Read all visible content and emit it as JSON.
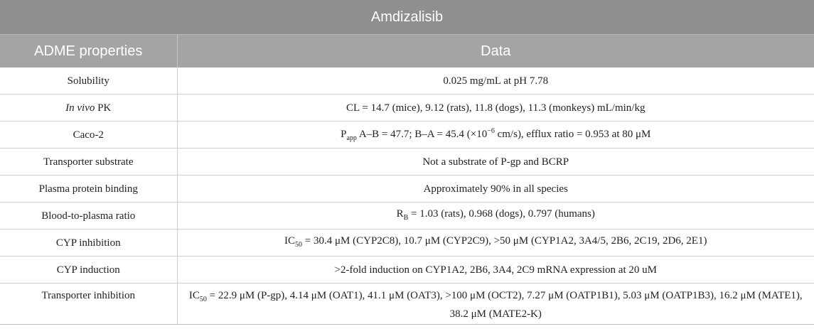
{
  "table": {
    "title": "Amdizalisib",
    "headers": {
      "property": "ADME properties",
      "data": "Data"
    },
    "rows": [
      {
        "property": "Solubility",
        "data": "0.025 mg/mL at pH 7.78"
      },
      {
        "property_italic": "In vivo",
        "property_rest": " PK",
        "data": "CL = 14.7 (mice), 9.12 (rats), 11.8 (dogs), 11.3 (monkeys) mL/min/kg"
      },
      {
        "property": "Caco-2",
        "data_p": "P",
        "data_sub": "app",
        "data_mid": " A–B = 47.7; B–A = 45.4 (×10",
        "data_sup": "−6",
        "data_rest": " cm/s), efflux ratio = 0.953 at 80 μM"
      },
      {
        "property": "Transporter substrate",
        "data": "Not a substrate of P-gp and BCRP"
      },
      {
        "property": "Plasma protein binding",
        "data": "Approximately 90% in all species"
      },
      {
        "property": "Blood-to-plasma ratio",
        "data_r": "R",
        "data_sub": "B",
        "data_rest": " = 1.03 (rats), 0.968 (dogs), 0.797 (humans)"
      },
      {
        "property": "CYP inhibition",
        "data_ic": "IC",
        "data_sub": "50",
        "data_rest": " = 30.4 μM (CYP2C8), 10.7 μM (CYP2C9), >50 μM (CYP1A2, 3A4/5, 2B6, 2C19, 2D6, 2E1)"
      },
      {
        "property": "CYP induction",
        "data": ">2-fold induction on CYP1A2, 2B6, 3A4, 2C9 mRNA expression at 20 uM"
      },
      {
        "property": "Transporter inhibition",
        "data_ic": "IC",
        "data_sub": "50",
        "data_rest": " = 22.9 μM (P-gp), 4.14 μM (OAT1), 41.1 μM (OAT3), >100 μM (OCT2), 7.27 μM (OATP1B1), 5.03 μM (OATP1B3), 16.2 μM (MATE1), 38.2 μM (MATE2-K)"
      }
    ]
  }
}
